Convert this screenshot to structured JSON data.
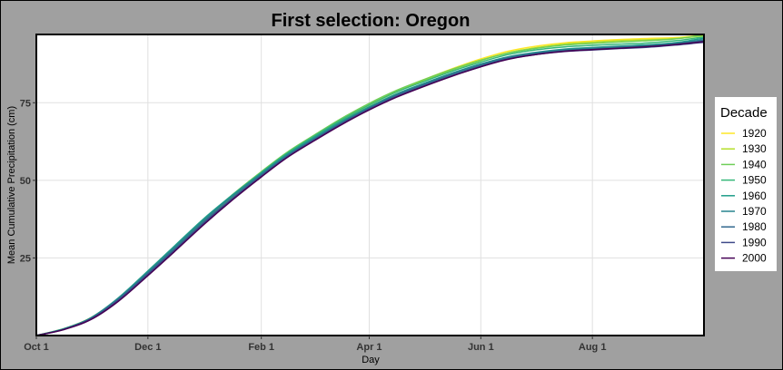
{
  "chart_data": {
    "type": "line",
    "title": "First selection: Oregon",
    "xlabel": "Day",
    "ylabel": "Mean Cumulative Precipitation (cm)",
    "x_ticks": [
      {
        "label": "Oct 1",
        "day": 0
      },
      {
        "label": "Dec 1",
        "day": 61
      },
      {
        "label": "Feb 1",
        "day": 123
      },
      {
        "label": "Apr 1",
        "day": 182
      },
      {
        "label": "Jun 1",
        "day": 243
      },
      {
        "label": "Aug 1",
        "day": 304
      }
    ],
    "y_ticks": [
      25,
      50,
      75
    ],
    "xlim": [
      0,
      365
    ],
    "ylim": [
      0,
      97
    ],
    "grid": true,
    "legend": {
      "title": "Decade",
      "position": "right"
    },
    "x": [
      0,
      15,
      30,
      45,
      61,
      76,
      92,
      107,
      123,
      137,
      152,
      167,
      182,
      197,
      213,
      228,
      243,
      258,
      274,
      289,
      304,
      320,
      335,
      350,
      365
    ],
    "series": [
      {
        "name": "1920",
        "color": "#fde725",
        "values": [
          0,
          2.2,
          5.8,
          12.0,
          20.3,
          28.4,
          37.2,
          44.8,
          52.3,
          58.6,
          64.2,
          69.6,
          74.4,
          78.8,
          82.7,
          86.1,
          89.1,
          91.6,
          93.3,
          94.3,
          94.9,
          95.4,
          95.7,
          96.0,
          96.8
        ]
      },
      {
        "name": "1930",
        "color": "#b5de2b",
        "values": [
          0,
          2.1,
          5.6,
          11.8,
          20.1,
          28.2,
          37.0,
          44.6,
          52.1,
          58.4,
          64.0,
          69.4,
          74.2,
          78.5,
          82.3,
          85.7,
          88.6,
          91.1,
          92.8,
          93.9,
          94.5,
          95.0,
          95.3,
          95.7,
          96.6
        ]
      },
      {
        "name": "1940",
        "color": "#6ece58",
        "values": [
          0,
          2.2,
          5.7,
          12.0,
          20.5,
          28.7,
          37.6,
          45.3,
          52.8,
          59.0,
          64.6,
          70.0,
          74.8,
          79.0,
          82.7,
          85.9,
          88.7,
          91.0,
          92.6,
          93.6,
          94.1,
          94.6,
          95.0,
          95.6,
          96.9
        ]
      },
      {
        "name": "1950",
        "color": "#35b779",
        "values": [
          0,
          2.1,
          5.6,
          11.9,
          20.3,
          28.5,
          37.4,
          45.0,
          52.5,
          58.7,
          64.3,
          69.6,
          74.3,
          78.5,
          82.1,
          85.3,
          88.1,
          90.5,
          92.1,
          93.0,
          93.5,
          93.9,
          94.3,
          95.0,
          96.2
        ]
      },
      {
        "name": "1960",
        "color": "#1f9e89",
        "values": [
          0,
          2.2,
          5.8,
          12.2,
          20.8,
          29.1,
          37.9,
          45.2,
          52.4,
          58.4,
          63.9,
          69.1,
          73.7,
          77.9,
          81.5,
          84.7,
          87.5,
          89.8,
          91.3,
          92.3,
          92.8,
          93.3,
          93.7,
          94.4,
          95.8
        ]
      },
      {
        "name": "1970",
        "color": "#26828e",
        "values": [
          0,
          2.1,
          5.7,
          12.0,
          20.4,
          28.6,
          37.4,
          44.8,
          52.0,
          58.0,
          63.5,
          68.7,
          73.4,
          77.6,
          81.3,
          84.6,
          87.4,
          89.7,
          91.2,
          92.1,
          92.6,
          93.1,
          93.5,
          94.2,
          95.3
        ]
      },
      {
        "name": "1980",
        "color": "#31688e",
        "values": [
          0,
          2.0,
          5.5,
          11.7,
          20.0,
          28.0,
          36.8,
          44.2,
          51.6,
          57.7,
          63.2,
          68.5,
          73.2,
          77.4,
          81.0,
          84.2,
          87.0,
          89.4,
          90.9,
          91.8,
          92.3,
          92.8,
          93.2,
          93.9,
          95.0
        ]
      },
      {
        "name": "1990",
        "color": "#3e4989",
        "values": [
          0,
          2.0,
          5.4,
          11.5,
          19.7,
          27.7,
          36.4,
          43.9,
          51.3,
          57.5,
          63.0,
          68.2,
          72.9,
          77.0,
          80.6,
          83.8,
          86.6,
          89.1,
          90.6,
          91.5,
          92.0,
          92.5,
          92.9,
          93.6,
          94.5
        ]
      },
      {
        "name": "2000",
        "color": "#440154",
        "values": [
          0,
          1.9,
          5.2,
          11.1,
          19.3,
          27.3,
          36.0,
          43.6,
          51.1,
          57.3,
          62.8,
          68.0,
          72.7,
          76.8,
          80.5,
          83.7,
          86.6,
          89.0,
          90.6,
          91.6,
          92.1,
          92.6,
          93.1,
          93.8,
          94.7
        ]
      }
    ]
  }
}
